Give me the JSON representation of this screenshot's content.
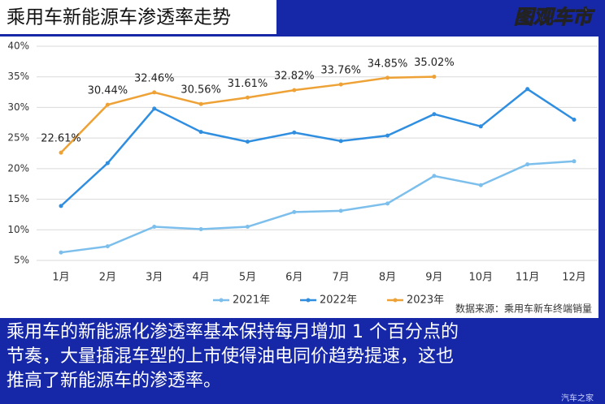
{
  "header": {
    "title": "乘用车新能源车渗透率走势",
    "logo": "图观车市"
  },
  "chart_data": {
    "type": "line",
    "categories": [
      "1月",
      "2月",
      "3月",
      "4月",
      "5月",
      "6月",
      "7月",
      "8月",
      "9月",
      "10月",
      "11月",
      "12月"
    ],
    "series": [
      {
        "name": "2021年",
        "color": "#7dbfec",
        "values": [
          6.3,
          7.3,
          10.5,
          10.1,
          10.5,
          12.9,
          13.1,
          14.3,
          18.8,
          17.3,
          20.7,
          21.2
        ]
      },
      {
        "name": "2022年",
        "color": "#2f8ee0",
        "values": [
          13.9,
          20.9,
          29.8,
          26.0,
          24.4,
          25.9,
          24.5,
          25.4,
          28.9,
          26.9,
          33.0,
          28.0
        ]
      },
      {
        "name": "2023年",
        "color": "#eea236",
        "values": [
          22.61,
          30.44,
          32.46,
          30.56,
          31.61,
          32.82,
          33.76,
          34.85,
          35.02,
          null,
          null,
          null
        ],
        "value_labels": [
          "22.61%",
          "30.44%",
          "32.46%",
          "30.56%",
          "31.61%",
          "32.82%",
          "33.76%",
          "34.85%",
          "35.02%",
          null,
          null,
          null
        ]
      }
    ],
    "ylim": [
      5,
      40
    ],
    "yticks": [
      {
        "value": 5,
        "label": "5%"
      },
      {
        "value": 10,
        "label": "10%"
      },
      {
        "value": 15,
        "label": "15%"
      },
      {
        "value": 20,
        "label": "20%"
      },
      {
        "value": 25,
        "label": "25%"
      },
      {
        "value": 30,
        "label": "30%"
      },
      {
        "value": 35,
        "label": "35%"
      },
      {
        "value": 40,
        "label": "40%"
      }
    ],
    "grid": true,
    "legend": "bottom",
    "source": "数据来源：乘用车新车终端销量"
  },
  "caption": [
    "乘用车的新能源化渗透率基本保持每月增加 1 个百分点的",
    "节奏，大量插混车型的上市使得油电同价趋势提速，这也",
    "推高了新能源车的渗透率。"
  ],
  "watermark": "汽车之家"
}
